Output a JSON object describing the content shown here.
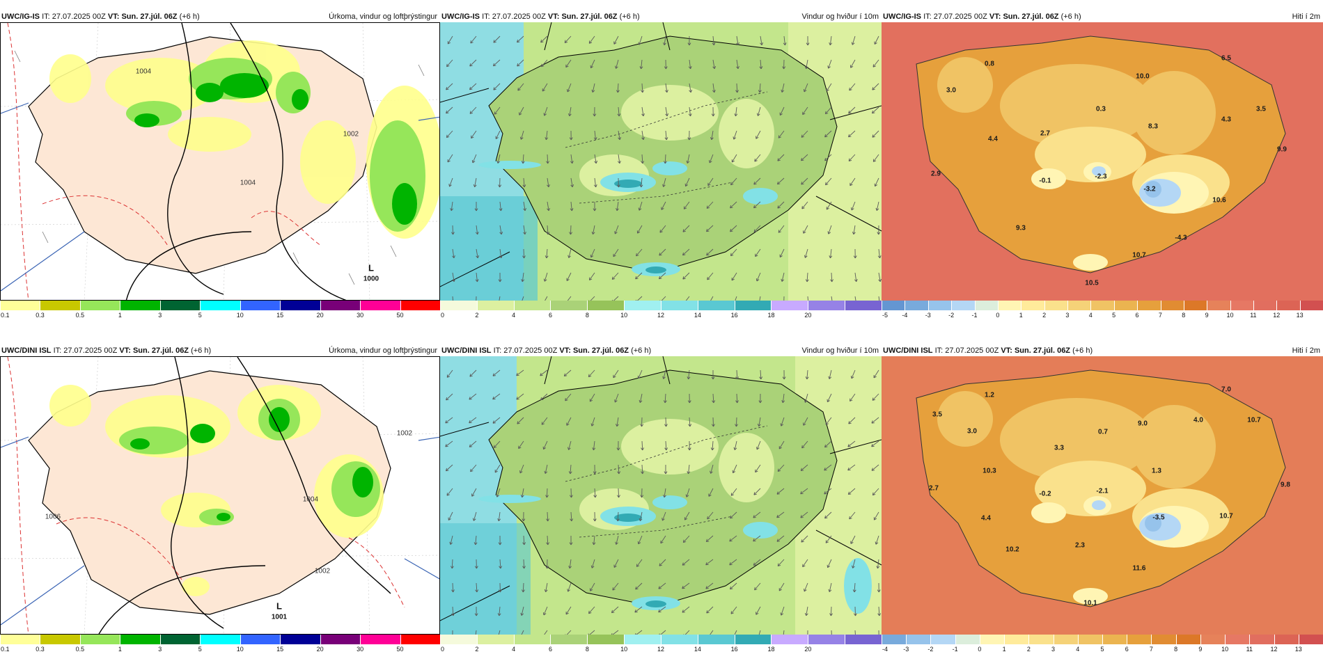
{
  "rows": [
    {
      "model": "UWC/IG-IS",
      "it_label": "IT:",
      "it": "27.07.2025 00Z",
      "vt_label": "VT:",
      "vt": "Sun. 27.júl. 06Z",
      "lead": "(+6 h)",
      "panels": {
        "precip": {
          "title": "Úrkoma, vindur og loftþrýstingur",
          "low_letter": "L",
          "low_value": "1000",
          "isobars": [
            "1002",
            "1004",
            "1004"
          ]
        },
        "wind": {
          "title": "Vindur og hviður í 10m"
        },
        "temp": {
          "title": "Hiti í 2m",
          "values": [
            "0.8",
            "6.5",
            "3.0",
            "10.0",
            "0.3",
            "3.5",
            "4.3",
            "4.4",
            "2.7",
            "8.3",
            "9.9",
            "2.9",
            "-0.1",
            "-2.3",
            "-3.2",
            "10.6",
            "9.3",
            "-4.3",
            "10.7",
            "10.5"
          ]
        }
      }
    },
    {
      "model": "UWC/DINI ISL",
      "it_label": "IT:",
      "it": "27.07.2025 00Z",
      "vt_label": "VT:",
      "vt": "Sun. 27.júl. 06Z",
      "lead": "(+6 h)",
      "panels": {
        "precip": {
          "title": "Úrkoma, vindur og loftþrýstingur",
          "low_letter": "L",
          "low_value": "1001",
          "isobars": [
            "1006",
            "1002",
            "1004",
            "1002"
          ]
        },
        "wind": {
          "title": "Vindur og hviður í 10m"
        },
        "temp": {
          "title": "Hiti í 2m",
          "values": [
            "1.2",
            "7.0",
            "3.5",
            "3.0",
            "9.0",
            "4.0",
            "10.7",
            "0.7",
            "3.3",
            "10.3",
            "1.3",
            "2.7",
            "-0.2",
            "-2.1",
            "9.8",
            "-3.5",
            "10.7",
            "4.4",
            "10.2",
            "2.3",
            "11.6",
            "10.1"
          ]
        }
      }
    }
  ],
  "colorbars": {
    "precip": {
      "ticks": [
        "0.1",
        "0.3",
        "0.5",
        "1",
        "3",
        "5",
        "10",
        "15",
        "20",
        "30",
        "50"
      ],
      "colors": [
        "#ffff99",
        "#c8c800",
        "#96e65a",
        "#00b400",
        "#006432",
        "#00ffff",
        "#3264ff",
        "#000096",
        "#780078",
        "#ff0096",
        "#ff0000"
      ]
    },
    "wind": {
      "ticks": [
        "0",
        "2",
        "4",
        "6",
        "8",
        "10",
        "12",
        "14",
        "16",
        "18",
        "20"
      ],
      "colors": [
        "#f5fadc",
        "#dcf0a0",
        "#c3e68c",
        "#aad278",
        "#96c35a",
        "#a0f0f0",
        "#82e1e6",
        "#5ac8d2",
        "#32aab4",
        "#c8aaff",
        "#9682e6",
        "#7864d2"
      ]
    },
    "temp_row1": {
      "ticks": [
        "-5",
        "-4",
        "-3",
        "-2",
        "-1",
        "0",
        "1",
        "2",
        "3",
        "4",
        "5",
        "6",
        "7",
        "8",
        "9",
        "10",
        "11",
        "12",
        "13"
      ],
      "colors": [
        "#6496d2",
        "#78aadc",
        "#96c3eb",
        "#b4d7f5",
        "#dceedc",
        "#fff5b4",
        "#ffeb9b",
        "#fae18c",
        "#f5d278",
        "#f0c364",
        "#ebb450",
        "#e6a03c",
        "#e18c32",
        "#dc7828",
        "#e6825a",
        "#e67864",
        "#e16e5f",
        "#dc6455",
        "#d25050"
      ]
    },
    "temp_row2": {
      "ticks": [
        "-4",
        "-3",
        "-2",
        "-1",
        "0",
        "1",
        "2",
        "3",
        "4",
        "5",
        "6",
        "7",
        "8",
        "9",
        "10",
        "11",
        "12",
        "13"
      ],
      "colors": [
        "#78aadc",
        "#96c3eb",
        "#b4d7f5",
        "#dceedc",
        "#fff5b4",
        "#ffeb9b",
        "#fae18c",
        "#f5d278",
        "#f0c364",
        "#ebb450",
        "#e6a03c",
        "#e18c32",
        "#dc7828",
        "#e6825a",
        "#e67864",
        "#e16e5f",
        "#dc6455",
        "#d25050"
      ]
    }
  }
}
